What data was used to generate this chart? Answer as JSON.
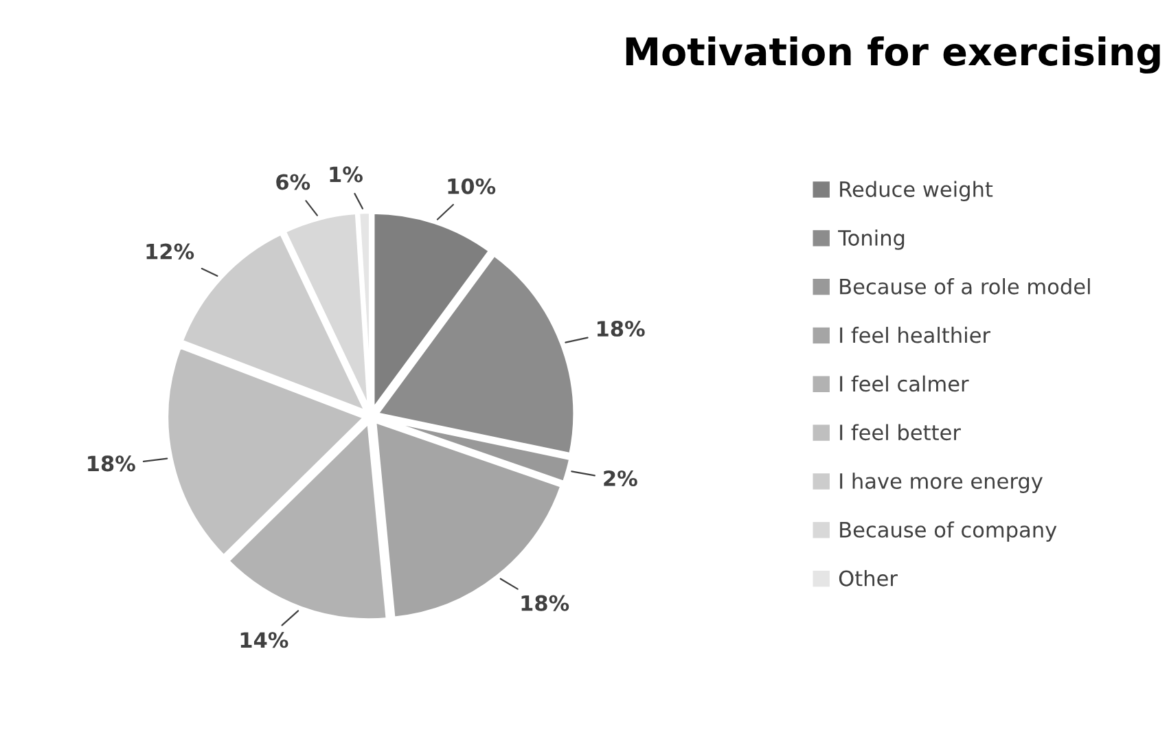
{
  "chart_data": {
    "type": "pie",
    "title": "Motivation for exercising",
    "categories": [
      "Reduce weight",
      "Toning",
      "Because of a role model",
      "I feel healthier",
      "I feel calmer",
      "I feel better",
      "I have more energy",
      "Because of company",
      "Other"
    ],
    "values": [
      10,
      18,
      2,
      18,
      14,
      18,
      12,
      6,
      1
    ],
    "value_labels": [
      "10%",
      "18%",
      "2%",
      "18%",
      "14%",
      "18%",
      "12%",
      "6%",
      "1%"
    ],
    "colors": [
      "#7f7f7f",
      "#8c8c8c",
      "#999999",
      "#a5a5a5",
      "#b2b2b2",
      "#bfbfbf",
      "#cccccc",
      "#d8d8d8",
      "#e5e5e5"
    ],
    "legend": "right"
  }
}
